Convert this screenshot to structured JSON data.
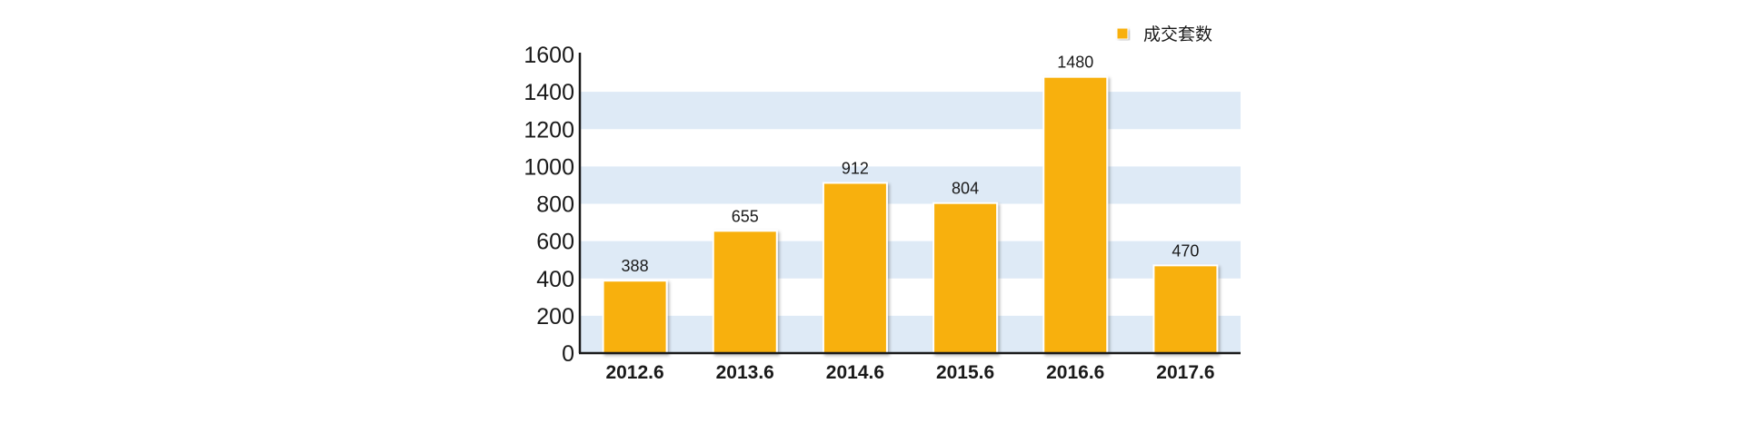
{
  "chart_data": {
    "type": "bar",
    "categories": [
      "2012.6",
      "2013.6",
      "2014.6",
      "2015.6",
      "2016.6",
      "2017.6"
    ],
    "series": [
      {
        "name": "成交套数",
        "values": [
          388,
          655,
          912,
          804,
          1480,
          470
        ]
      }
    ],
    "title": "",
    "xlabel": "",
    "ylabel": "",
    "ylim": [
      0,
      1600
    ],
    "yticks": [
      "0",
      "200",
      "400",
      "600",
      "800",
      "1000",
      "1200",
      "1400",
      "1600"
    ],
    "data_labels": [
      "388",
      "655",
      "912",
      "804",
      "1480",
      "470"
    ],
    "legend": {
      "position": "top-right",
      "label": "成交套数"
    },
    "grid": "alternating horizontal bands",
    "colors": {
      "bar": "#f8b00f",
      "bar_edge": "#ffffff",
      "band": "#deeaf6",
      "axis": "#1a1a1a"
    }
  }
}
